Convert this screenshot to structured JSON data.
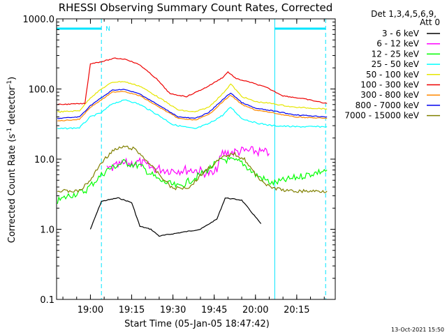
{
  "chart_data": {
    "type": "line",
    "title": "RHESSI Observing Summary Count Rates, Corrected",
    "xlabel": "Start Time (05-Jan-05 18:47:42)",
    "ylabel": "Corrected Count Rate (s⁻¹ detector⁻¹)",
    "ylabel_main": "Corrected Count Rate (s",
    "ylabel_sup1": "-1",
    "ylabel_mid": " detector",
    "ylabel_sup2": "-1",
    "ylabel_end": ")",
    "y_scale": "log",
    "ylim": [
      0.1,
      1000
    ],
    "y_ticks": [
      {
        "value": 0.1,
        "label": "0.1"
      },
      {
        "value": 1,
        "label": "1.0"
      },
      {
        "value": 10,
        "label": "10.0"
      },
      {
        "value": 100,
        "label": "100.0"
      },
      {
        "value": 1000,
        "label": "1000.0"
      }
    ],
    "xlim": [
      "18:47:42",
      "20:29:00"
    ],
    "x_ticks": [
      {
        "value": "19:00",
        "label": "19:00"
      },
      {
        "value": "19:15",
        "label": "19:15"
      },
      {
        "value": "19:30",
        "label": "19:30"
      },
      {
        "value": "19:45",
        "label": "19:45"
      },
      {
        "value": "20:00",
        "label": "20:00"
      },
      {
        "value": "20:15",
        "label": "20:15"
      }
    ],
    "legend_header": [
      "Det 1,3,4,5,6,9,",
      "Att 0"
    ],
    "legend_placement": "right",
    "night_label": "N",
    "night_bars": [
      {
        "start": "18:47:42",
        "end": "19:04:00"
      },
      {
        "start": "20:07:00",
        "end": "20:25:30"
      }
    ],
    "vlines_solid": [
      "18:47:42",
      "20:07:00"
    ],
    "vlines_dashed": [
      "19:04:00",
      "20:25:30"
    ],
    "series": [
      {
        "name": "3 - 6 keV",
        "color": "#000000",
        "points": [
          [
            "19:00",
            1.0
          ],
          [
            "19:04",
            2.5
          ],
          [
            "19:10",
            2.8
          ],
          [
            "19:15",
            2.4
          ],
          [
            "19:18",
            1.1
          ],
          [
            "19:22",
            1.0
          ],
          [
            "19:25",
            0.8
          ],
          [
            "19:40",
            1.0
          ],
          [
            "19:46",
            1.4
          ],
          [
            "19:49",
            2.8
          ],
          [
            "19:55",
            2.6
          ],
          [
            "20:02",
            1.2
          ]
        ]
      },
      {
        "name": "6 - 12 keV",
        "color": "#ff00ff",
        "points": [
          [
            "19:06",
            7
          ],
          [
            "19:12",
            8.5
          ],
          [
            "19:18",
            9
          ],
          [
            "19:22",
            7.5
          ],
          [
            "19:28",
            7
          ],
          [
            "19:38",
            7
          ],
          [
            "19:45",
            6
          ],
          [
            "19:48",
            12
          ],
          [
            "19:55",
            13
          ],
          [
            "20:00",
            13
          ],
          [
            "20:05",
            12
          ]
        ]
      },
      {
        "name": "12 - 25 keV",
        "color": "#00ff00",
        "points": [
          [
            "18:48",
            2.5
          ],
          [
            "18:52",
            3
          ],
          [
            "18:58",
            3.5
          ],
          [
            "19:02",
            5
          ],
          [
            "19:06",
            7
          ],
          [
            "19:12",
            9
          ],
          [
            "19:18",
            8
          ],
          [
            "19:25",
            5
          ],
          [
            "19:32",
            4
          ],
          [
            "19:40",
            6
          ],
          [
            "19:48",
            10
          ],
          [
            "19:55",
            9
          ],
          [
            "20:00",
            6
          ],
          [
            "20:06",
            4.5
          ],
          [
            "20:15",
            5.5
          ],
          [
            "20:26",
            7
          ]
        ]
      },
      {
        "name": "25 - 50 keV",
        "color": "#00ffff",
        "points": [
          [
            "18:48",
            27
          ],
          [
            "18:56",
            28
          ],
          [
            "19:00",
            40
          ],
          [
            "19:04",
            46
          ],
          [
            "19:08",
            62
          ],
          [
            "19:13",
            70
          ],
          [
            "19:18",
            60
          ],
          [
            "19:24",
            44
          ],
          [
            "19:30",
            31
          ],
          [
            "19:38",
            27
          ],
          [
            "19:43",
            32
          ],
          [
            "19:48",
            42
          ],
          [
            "19:51",
            55
          ],
          [
            "19:55",
            38
          ],
          [
            "20:00",
            33
          ],
          [
            "20:06",
            30
          ],
          [
            "20:14",
            29
          ],
          [
            "20:26",
            29
          ]
        ]
      },
      {
        "name": "50 - 100 keV",
        "color": "#e6e600",
        "points": [
          [
            "18:48",
            47
          ],
          [
            "18:56",
            49
          ],
          [
            "19:00",
            75
          ],
          [
            "19:04",
            100
          ],
          [
            "19:08",
            125
          ],
          [
            "19:12",
            128
          ],
          [
            "19:18",
            110
          ],
          [
            "19:25",
            75
          ],
          [
            "19:32",
            50
          ],
          [
            "19:38",
            47
          ],
          [
            "19:43",
            55
          ],
          [
            "19:48",
            85
          ],
          [
            "19:51",
            118
          ],
          [
            "19:55",
            78
          ],
          [
            "20:00",
            66
          ],
          [
            "20:06",
            62
          ],
          [
            "20:14",
            55
          ],
          [
            "20:26",
            52
          ]
        ]
      },
      {
        "name": "100 - 300 keV",
        "color": "#ee0000",
        "points": [
          [
            "18:48",
            60
          ],
          [
            "18:58",
            62
          ],
          [
            "19:00",
            230
          ],
          [
            "19:04",
            245
          ],
          [
            "19:09",
            275
          ],
          [
            "19:13",
            265
          ],
          [
            "19:18",
            220
          ],
          [
            "19:24",
            140
          ],
          [
            "19:29",
            85
          ],
          [
            "19:35",
            78
          ],
          [
            "19:42",
            105
          ],
          [
            "19:48",
            145
          ],
          [
            "19:50",
            175
          ],
          [
            "19:53",
            140
          ],
          [
            "19:58",
            125
          ],
          [
            "20:04",
            105
          ],
          [
            "20:10",
            80
          ],
          [
            "20:18",
            72
          ],
          [
            "20:26",
            62
          ]
        ]
      },
      {
        "name": "300 - 800 keV",
        "color": "#ff8800",
        "points": [
          [
            "18:48",
            35
          ],
          [
            "18:56",
            37
          ],
          [
            "19:00",
            55
          ],
          [
            "19:04",
            70
          ],
          [
            "19:08",
            90
          ],
          [
            "19:12",
            93
          ],
          [
            "19:18",
            80
          ],
          [
            "19:25",
            55
          ],
          [
            "19:32",
            38
          ],
          [
            "19:38",
            36
          ],
          [
            "19:43",
            43
          ],
          [
            "19:48",
            65
          ],
          [
            "19:51",
            82
          ],
          [
            "19:55",
            60
          ],
          [
            "20:00",
            50
          ],
          [
            "20:06",
            46
          ],
          [
            "20:14",
            40
          ],
          [
            "20:26",
            38
          ]
        ]
      },
      {
        "name": "800 - 7000 keV",
        "color": "#0000ee",
        "points": [
          [
            "18:48",
            38
          ],
          [
            "18:56",
            40
          ],
          [
            "19:00",
            58
          ],
          [
            "19:04",
            75
          ],
          [
            "19:08",
            96
          ],
          [
            "19:12",
            99
          ],
          [
            "19:18",
            85
          ],
          [
            "19:25",
            58
          ],
          [
            "19:32",
            40
          ],
          [
            "19:38",
            38
          ],
          [
            "19:43",
            46
          ],
          [
            "19:48",
            70
          ],
          [
            "19:51",
            88
          ],
          [
            "19:55",
            64
          ],
          [
            "20:00",
            53
          ],
          [
            "20:06",
            49
          ],
          [
            "20:14",
            43
          ],
          [
            "20:26",
            40
          ]
        ]
      },
      {
        "name": "7000 - 15000 keV",
        "color": "#808000",
        "points": [
          [
            "18:48",
            3.5
          ],
          [
            "18:56",
            3.5
          ],
          [
            "19:00",
            5
          ],
          [
            "19:04",
            9
          ],
          [
            "19:08",
            13
          ],
          [
            "19:12",
            15
          ],
          [
            "19:16",
            14
          ],
          [
            "19:20",
            10
          ],
          [
            "19:25",
            6
          ],
          [
            "19:30",
            3.8
          ],
          [
            "19:36",
            4
          ],
          [
            "19:42",
            7
          ],
          [
            "19:48",
            10.5
          ],
          [
            "19:52",
            12
          ],
          [
            "19:56",
            10
          ],
          [
            "20:00",
            6
          ],
          [
            "20:05",
            4
          ],
          [
            "20:12",
            3.5
          ],
          [
            "20:26",
            3.5
          ]
        ]
      }
    ]
  },
  "footer": {
    "timestamp": "13-Oct-2021 15:50"
  }
}
